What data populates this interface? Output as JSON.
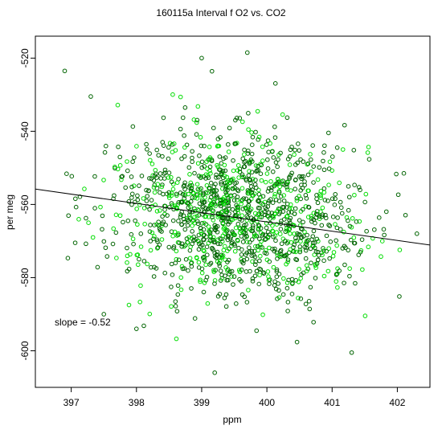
{
  "chart_data": {
    "type": "scatter",
    "title": "160115a   Interval f O2 vs. CO2",
    "xlabel": "ppm",
    "ylabel": "per meg",
    "xlim": [
      396.45,
      402.5
    ],
    "ylim": [
      -610,
      -514
    ],
    "x_ticks": [
      397,
      398,
      399,
      400,
      401,
      402
    ],
    "y_ticks": [
      -520,
      -540,
      -560,
      -580,
      -600
    ],
    "annotation": "slope =  -0.52",
    "grid": false,
    "legend": "none",
    "colors": {
      "dark_points": "#006400",
      "bright_points": "#00dd00",
      "fit_line": "#000000"
    },
    "fit_line": {
      "slope": -0.52,
      "points": [
        [
          396.45,
          -555.8
        ],
        [
          402.5,
          -571.1
        ]
      ]
    },
    "cloud": {
      "x_center": 399.55,
      "x_sd": 0.95,
      "y_center": -563,
      "y_sd": 11,
      "count": 1400
    },
    "outliers": [
      {
        "x": 396.9,
        "y": -523.5
      },
      {
        "x": 399.0,
        "y": -520.0
      },
      {
        "x": 399.7,
        "y": -518.5
      },
      {
        "x": 399.2,
        "y": -606.0
      },
      {
        "x": 402.3,
        "y": -568.0
      },
      {
        "x": 397.5,
        "y": -590.0
      },
      {
        "x": 398.0,
        "y": -594.0
      },
      {
        "x": 401.3,
        "y": -600.5
      },
      {
        "x": 397.3,
        "y": -530.5
      },
      {
        "x": 402.1,
        "y": -551.5
      }
    ]
  }
}
